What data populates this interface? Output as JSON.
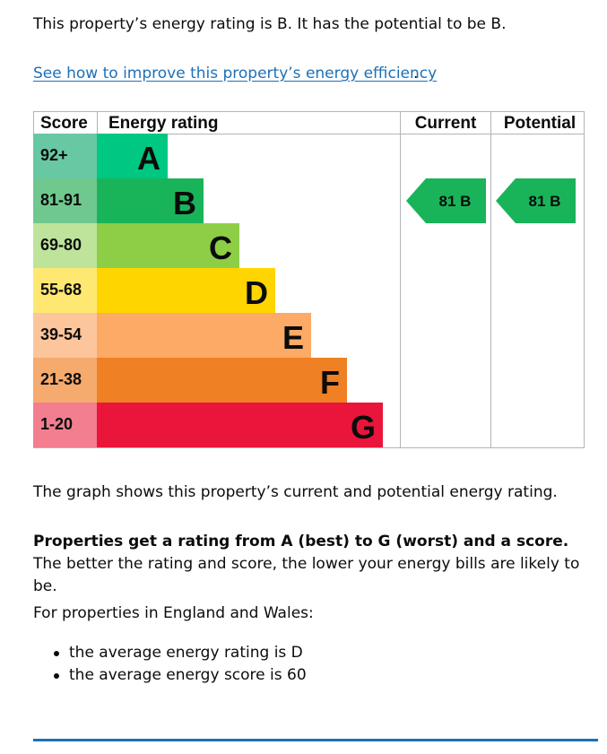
{
  "intro": "This property’s energy rating is B. It has the potential to be B.",
  "improve_link": "See how to improve this property’s energy efficiency",
  "improve_link_tail": ".",
  "colors": {
    "link": "#1d70b8",
    "A": "#00c781",
    "B": "#19b459",
    "C": "#8dce46",
    "D": "#ffd500",
    "E": "#fcaa65",
    "F": "#ef8023",
    "G": "#e9153b",
    "score_A": "#68c8a4",
    "score_B": "#6fc88e",
    "score_C": "#bde49a",
    "score_D": "#ffe871",
    "score_E": "#fdc59b",
    "score_F": "#f5aa6e",
    "score_G": "#f27e8f"
  },
  "chart_data": {
    "type": "table",
    "headers": {
      "score": "Score",
      "rating": "Energy rating",
      "current": "Current",
      "potential": "Potential"
    },
    "bands": [
      {
        "letter": "A",
        "range": "92+"
      },
      {
        "letter": "B",
        "range": "81-91"
      },
      {
        "letter": "C",
        "range": "69-80"
      },
      {
        "letter": "D",
        "range": "55-68"
      },
      {
        "letter": "E",
        "range": "39-54"
      },
      {
        "letter": "F",
        "range": "21-38"
      },
      {
        "letter": "G",
        "range": "1-20"
      }
    ],
    "current": {
      "score": 81,
      "band": "B",
      "label": "81  B"
    },
    "potential": {
      "score": 81,
      "band": "B",
      "label": "81  B"
    }
  },
  "graph_text": "The graph shows this property’s current and potential energy rating.",
  "rating_bold": "Properties get a rating from A (best) to G (worst) and a score.",
  "rating_rest": " The better the rating and score, the lower your energy bills are likely to be.",
  "england_wales": "For properties in England and Wales:",
  "bullets": [
    "the average energy rating is D",
    "the average energy score is 60"
  ]
}
